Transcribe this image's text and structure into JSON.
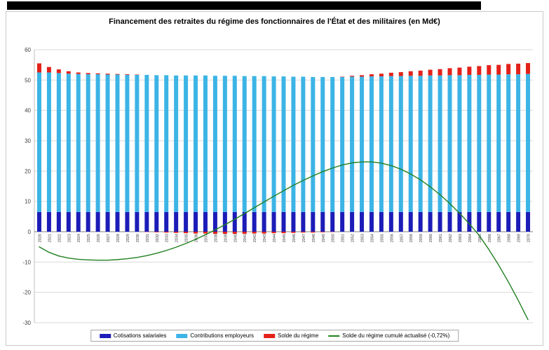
{
  "chart_data": {
    "type": "bar",
    "subtype": "stacked-bars-with-line",
    "title": "Financement des retraites du régime des fonctionnaires de l'État et des militaires (en Md€)",
    "xlabel": "",
    "ylabel": "",
    "ylim": [
      -30,
      60
    ],
    "ytick_step": 10,
    "grid": true,
    "legend_position": "bottom",
    "categories": [
      "2020",
      "2021",
      "2022",
      "2023",
      "2024",
      "2025",
      "2026",
      "2027",
      "2028",
      "2029",
      "2030",
      "2031",
      "2032",
      "2033",
      "2034",
      "2035",
      "2036",
      "2037",
      "2038",
      "2039",
      "2040",
      "2041",
      "2042",
      "2043",
      "2044",
      "2045",
      "2046",
      "2047",
      "2048",
      "2049",
      "2050",
      "2051",
      "2052",
      "2053",
      "2054",
      "2055",
      "2056",
      "2057",
      "2058",
      "2059",
      "2060",
      "2061",
      "2062",
      "2063",
      "2064",
      "2065",
      "2066",
      "2067",
      "2068",
      "2069",
      "2070"
    ],
    "series": [
      {
        "name": "Cotisations salariales",
        "render": "stacked-bar",
        "color": "#1c1cb8",
        "values": [
          6.5,
          6.5,
          6.5,
          6.5,
          6.5,
          6.5,
          6.5,
          6.5,
          6.5,
          6.5,
          6.5,
          6.5,
          6.5,
          6.5,
          6.5,
          6.5,
          6.5,
          6.5,
          6.5,
          6.5,
          6.5,
          6.5,
          6.5,
          6.5,
          6.5,
          6.5,
          6.5,
          6.5,
          6.5,
          6.5,
          6.5,
          6.5,
          6.5,
          6.5,
          6.5,
          6.5,
          6.5,
          6.5,
          6.5,
          6.5,
          6.5,
          6.5,
          6.5,
          6.5,
          6.5,
          6.5,
          6.5,
          6.5,
          6.5,
          6.5,
          6.5
        ]
      },
      {
        "name": "Contributions employeurs",
        "render": "stacked-bar",
        "color": "#3cb4e5",
        "values": [
          46.0,
          46.0,
          45.8,
          45.6,
          45.5,
          45.4,
          45.4,
          45.3,
          45.3,
          45.2,
          45.2,
          45.2,
          45.1,
          45.1,
          45.0,
          45.0,
          45.0,
          45.0,
          44.9,
          44.9,
          44.9,
          44.8,
          44.8,
          44.8,
          44.7,
          44.7,
          44.6,
          44.6,
          44.5,
          44.5,
          44.5,
          44.5,
          44.6,
          44.6,
          44.7,
          44.7,
          44.8,
          44.8,
          44.9,
          44.9,
          45.0,
          45.0,
          45.1,
          45.1,
          45.2,
          45.2,
          45.3,
          45.3,
          45.4,
          45.4,
          45.5
        ]
      },
      {
        "name": "Solde du régime",
        "render": "stacked-bar",
        "color": "#e32119",
        "values": [
          3.0,
          1.8,
          1.2,
          0.8,
          0.5,
          0.4,
          0.3,
          0.3,
          0.2,
          0.2,
          0.1,
          -0.1,
          -0.2,
          -0.3,
          -0.4,
          -0.5,
          -0.6,
          -0.6,
          -0.7,
          -0.7,
          -0.7,
          -0.7,
          -0.6,
          -0.6,
          -0.5,
          -0.5,
          -0.4,
          -0.3,
          -0.3,
          -0.2,
          -0.1,
          0.1,
          0.3,
          0.5,
          0.7,
          0.9,
          1.1,
          1.3,
          1.5,
          1.7,
          1.9,
          2.1,
          2.3,
          2.5,
          2.7,
          2.9,
          3.1,
          3.2,
          3.4,
          3.5,
          3.6
        ]
      },
      {
        "name": "Solde du régime cumulé actualisé (-0,72%)",
        "render": "line",
        "color": "#208020",
        "values": [
          -5.0,
          -6.8,
          -8.0,
          -8.7,
          -9.1,
          -9.3,
          -9.4,
          -9.4,
          -9.2,
          -8.9,
          -8.5,
          -7.9,
          -7.1,
          -6.2,
          -5.1,
          -3.9,
          -2.5,
          -1.0,
          0.6,
          2.3,
          4.1,
          6.0,
          7.9,
          9.8,
          11.7,
          13.5,
          15.3,
          16.9,
          18.4,
          19.8,
          21.0,
          22.0,
          22.7,
          23.0,
          23.0,
          22.6,
          21.8,
          20.6,
          19.0,
          17.1,
          14.8,
          12.2,
          9.3,
          6.1,
          2.6,
          -1.2,
          -5.9,
          -11.0,
          -16.6,
          -22.6,
          -29.0
        ]
      }
    ],
    "colors": {
      "gridline": "#d9d9d9",
      "zero_axis": "#808080",
      "axis_text": "#404040"
    }
  }
}
